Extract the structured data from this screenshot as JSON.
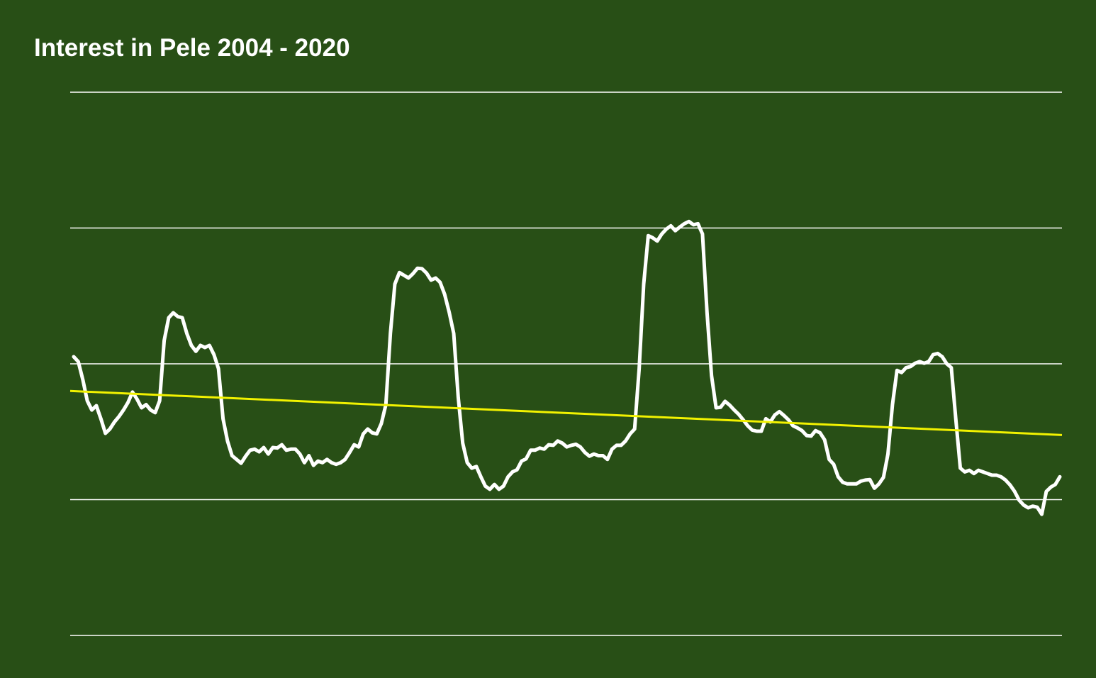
{
  "chart_data": {
    "type": "line",
    "title": "Interest in Pele 2004 - 2020",
    "ylim": [
      0,
      100
    ],
    "yticks": [
      0,
      25,
      50,
      75,
      100
    ],
    "grid": true,
    "series": [
      {
        "color": "#ffffff",
        "values": [
          51.3,
          50.4,
          47.1,
          43.2,
          41.5,
          42.3,
          39.9,
          37.2,
          38.0,
          39.3,
          40.3,
          41.5,
          42.9,
          44.8,
          43.5,
          41.9,
          42.5,
          41.5,
          41.0,
          43.2,
          54.3,
          58.5,
          59.4,
          58.7,
          58.5,
          55.6,
          53.4,
          52.3,
          53.4,
          53.0,
          53.4,
          51.7,
          49.1,
          39.9,
          35.8,
          33.1,
          32.4,
          31.7,
          33.0,
          34.1,
          34.3,
          33.8,
          34.6,
          33.4,
          34.6,
          34.5,
          35.1,
          34.1,
          34.3,
          34.3,
          33.4,
          31.8,
          33.1,
          31.3,
          32.1,
          31.8,
          32.4,
          31.8,
          31.5,
          31.8,
          32.4,
          33.7,
          35.1,
          34.7,
          37.1,
          38.0,
          37.3,
          37.1,
          39.0,
          42.5,
          55.6,
          64.7,
          66.8,
          66.3,
          65.8,
          66.6,
          67.6,
          67.5,
          66.7,
          65.4,
          65.8,
          65.0,
          62.8,
          59.5,
          55.6,
          43.8,
          35.4,
          31.8,
          30.8,
          31.1,
          29.2,
          27.5,
          26.9,
          27.8,
          26.9,
          27.5,
          29.2,
          30.1,
          30.5,
          32.1,
          32.5,
          34.1,
          34.1,
          34.5,
          34.3,
          35.1,
          35.0,
          35.8,
          35.4,
          34.7,
          35.0,
          35.2,
          34.7,
          33.7,
          33.0,
          33.4,
          33.1,
          33.1,
          32.4,
          34.3,
          35.0,
          35.0,
          35.8,
          37.1,
          38.0,
          49.1,
          64.7,
          73.6,
          73.2,
          72.6,
          73.9,
          74.8,
          75.4,
          74.5,
          75.2,
          75.8,
          76.2,
          75.6,
          75.8,
          73.9,
          59.5,
          47.8,
          41.9,
          42.0,
          43.1,
          42.4,
          41.5,
          40.7,
          39.7,
          38.6,
          37.8,
          37.6,
          37.6,
          39.9,
          39.3,
          40.6,
          41.2,
          40.5,
          39.7,
          38.6,
          38.2,
          37.7,
          36.8,
          36.7,
          37.7,
          37.3,
          36.0,
          32.4,
          31.5,
          29.2,
          28.2,
          27.9,
          27.9,
          27.9,
          28.4,
          28.6,
          28.7,
          27.1,
          27.9,
          29.1,
          33.4,
          42.5,
          48.8,
          48.4,
          49.3,
          49.5,
          50.1,
          50.4,
          50.1,
          50.4,
          51.7,
          51.9,
          51.3,
          50.0,
          49.3,
          39.9,
          30.8,
          30.1,
          30.4,
          29.8,
          30.4,
          30.1,
          29.8,
          29.5,
          29.5,
          29.2,
          28.6,
          27.7,
          26.5,
          24.9,
          24.0,
          23.5,
          23.8,
          23.6,
          22.3,
          26.5,
          27.3,
          27.8,
          29.2
        ]
      }
    ],
    "trendline": {
      "color": "#f2f200",
      "values": [
        45.0,
        36.9
      ]
    }
  }
}
